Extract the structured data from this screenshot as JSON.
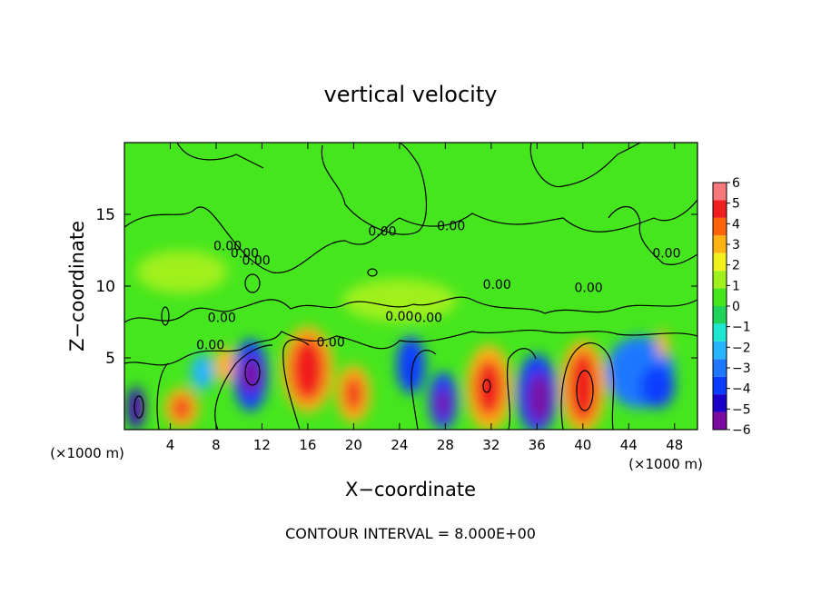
{
  "chart_data": {
    "type": "heatmap",
    "title": "vertical velocity",
    "xlabel": "X−coordinate",
    "ylabel": "Z−coordinate",
    "x_unit_left": "(×1000 m)",
    "x_unit_right": "(×1000 m)",
    "footer": "CONTOUR INTERVAL = 8.000E+00",
    "xlim": [
      0,
      50
    ],
    "ylim": [
      0,
      20
    ],
    "x_ticks": [
      4,
      8,
      12,
      16,
      20,
      24,
      28,
      32,
      36,
      40,
      44,
      48
    ],
    "x_tick_labels": [
      "4",
      "8",
      "12",
      "16",
      "20",
      "24",
      "28",
      "32",
      "36",
      "40",
      "44",
      "48"
    ],
    "y_ticks": [
      5,
      10,
      15
    ],
    "y_tick_labels": [
      "5",
      "10",
      "15"
    ],
    "colorbar": {
      "min": -6,
      "max": 6,
      "ticks": [
        6,
        5,
        4,
        3,
        2,
        1,
        0,
        -1,
        -2,
        -3,
        -4,
        -5,
        -6
      ],
      "tick_labels": [
        "6",
        "5",
        "4",
        "3",
        "2",
        "1",
        "0",
        "−1",
        "−2",
        "−3",
        "−4",
        "−5",
        "−6"
      ],
      "colors": [
        "#7a0aa0",
        "#1a00c8",
        "#0a3cff",
        "#1e78ff",
        "#28b4ff",
        "#1ee6d2",
        "#1ed25a",
        "#46e61e",
        "#a0f01e",
        "#f0f01e",
        "#ffb414",
        "#ff640a",
        "#f01e1e",
        "#f5787a"
      ]
    },
    "contour_labels": [
      {
        "x": 7.5,
        "y": 5.6,
        "text": "0.00"
      },
      {
        "x": 9.0,
        "y": 12.5,
        "text": "0.00"
      },
      {
        "x": 10.5,
        "y": 12.0,
        "text": "0.00"
      },
      {
        "x": 11.5,
        "y": 11.5,
        "text": "0.00"
      },
      {
        "x": 18.0,
        "y": 5.8,
        "text": "0.00"
      },
      {
        "x": 24.0,
        "y": 7.6,
        "text": "0.00"
      },
      {
        "x": 26.5,
        "y": 7.5,
        "text": "0.00"
      },
      {
        "x": 28.5,
        "y": 13.9,
        "text": "0.00"
      },
      {
        "x": 32.5,
        "y": 9.8,
        "text": "0.00"
      },
      {
        "x": 40.5,
        "y": 9.6,
        "text": "0.00"
      },
      {
        "x": 47.3,
        "y": 12.0,
        "text": "0.00"
      },
      {
        "x": 8.5,
        "y": 7.5,
        "text": "0.00"
      },
      {
        "x": 22.5,
        "y": 13.5,
        "text": "0.00"
      }
    ],
    "cells": [
      {
        "x": 1.0,
        "y": 1.5,
        "w": 1.5,
        "h": 3.0,
        "value": -5
      },
      {
        "x": 1.2,
        "y": 1.5,
        "w": 0.6,
        "h": 1.4,
        "value": -6
      },
      {
        "x": 5.0,
        "y": 1.5,
        "w": 3.0,
        "h": 2.8,
        "value": 3
      },
      {
        "x": 5.0,
        "y": 1.5,
        "w": 1.5,
        "h": 1.6,
        "value": 5
      },
      {
        "x": 6.8,
        "y": 4.0,
        "w": 2.0,
        "h": 2.5,
        "value": -2
      },
      {
        "x": 8.8,
        "y": 4.5,
        "w": 1.8,
        "h": 2.5,
        "value": 3
      },
      {
        "x": 11.0,
        "y": 3.8,
        "w": 3.0,
        "h": 5.0,
        "value": -4
      },
      {
        "x": 11.0,
        "y": 3.8,
        "w": 1.8,
        "h": 2.5,
        "value": -6
      },
      {
        "x": 16.0,
        "y": 4.2,
        "w": 4.5,
        "h": 6.0,
        "value": 3
      },
      {
        "x": 16.0,
        "y": 4.2,
        "w": 3.0,
        "h": 4.5,
        "value": 5
      },
      {
        "x": 20.0,
        "y": 2.5,
        "w": 3.0,
        "h": 4.0,
        "value": 3
      },
      {
        "x": 20.0,
        "y": 2.5,
        "w": 1.5,
        "h": 2.5,
        "value": 5
      },
      {
        "x": 25.0,
        "y": 4.5,
        "w": 2.5,
        "h": 4.0,
        "value": -4
      },
      {
        "x": 27.8,
        "y": 2.0,
        "w": 2.5,
        "h": 4.0,
        "value": -4
      },
      {
        "x": 27.8,
        "y": 1.8,
        "w": 1.2,
        "h": 2.2,
        "value": -6
      },
      {
        "x": 31.8,
        "y": 2.9,
        "w": 4.0,
        "h": 6.0,
        "value": 3
      },
      {
        "x": 31.8,
        "y": 2.9,
        "w": 2.5,
        "h": 4.0,
        "value": 5
      },
      {
        "x": 36.0,
        "y": 2.5,
        "w": 3.5,
        "h": 5.5,
        "value": -4
      },
      {
        "x": 36.2,
        "y": 2.2,
        "w": 2.0,
        "h": 3.5,
        "value": -6
      },
      {
        "x": 40.0,
        "y": 3.0,
        "w": 4.0,
        "h": 6.5,
        "value": 3
      },
      {
        "x": 40.0,
        "y": 3.0,
        "w": 2.5,
        "h": 5.0,
        "value": 5
      },
      {
        "x": 45.0,
        "y": 4.0,
        "w": 6.0,
        "h": 5.0,
        "value": -3
      },
      {
        "x": 46.5,
        "y": 3.0,
        "w": 3.0,
        "h": 3.0,
        "value": -4
      },
      {
        "x": 24.0,
        "y": 9.0,
        "w": 10.0,
        "h": 3.0,
        "value": 1
      },
      {
        "x": 5.0,
        "y": 11.0,
        "w": 8.0,
        "h": 3.0,
        "value": 1
      },
      {
        "x": 47.0,
        "y": 6.0,
        "w": 1.0,
        "h": 2.0,
        "value": 3
      }
    ]
  }
}
